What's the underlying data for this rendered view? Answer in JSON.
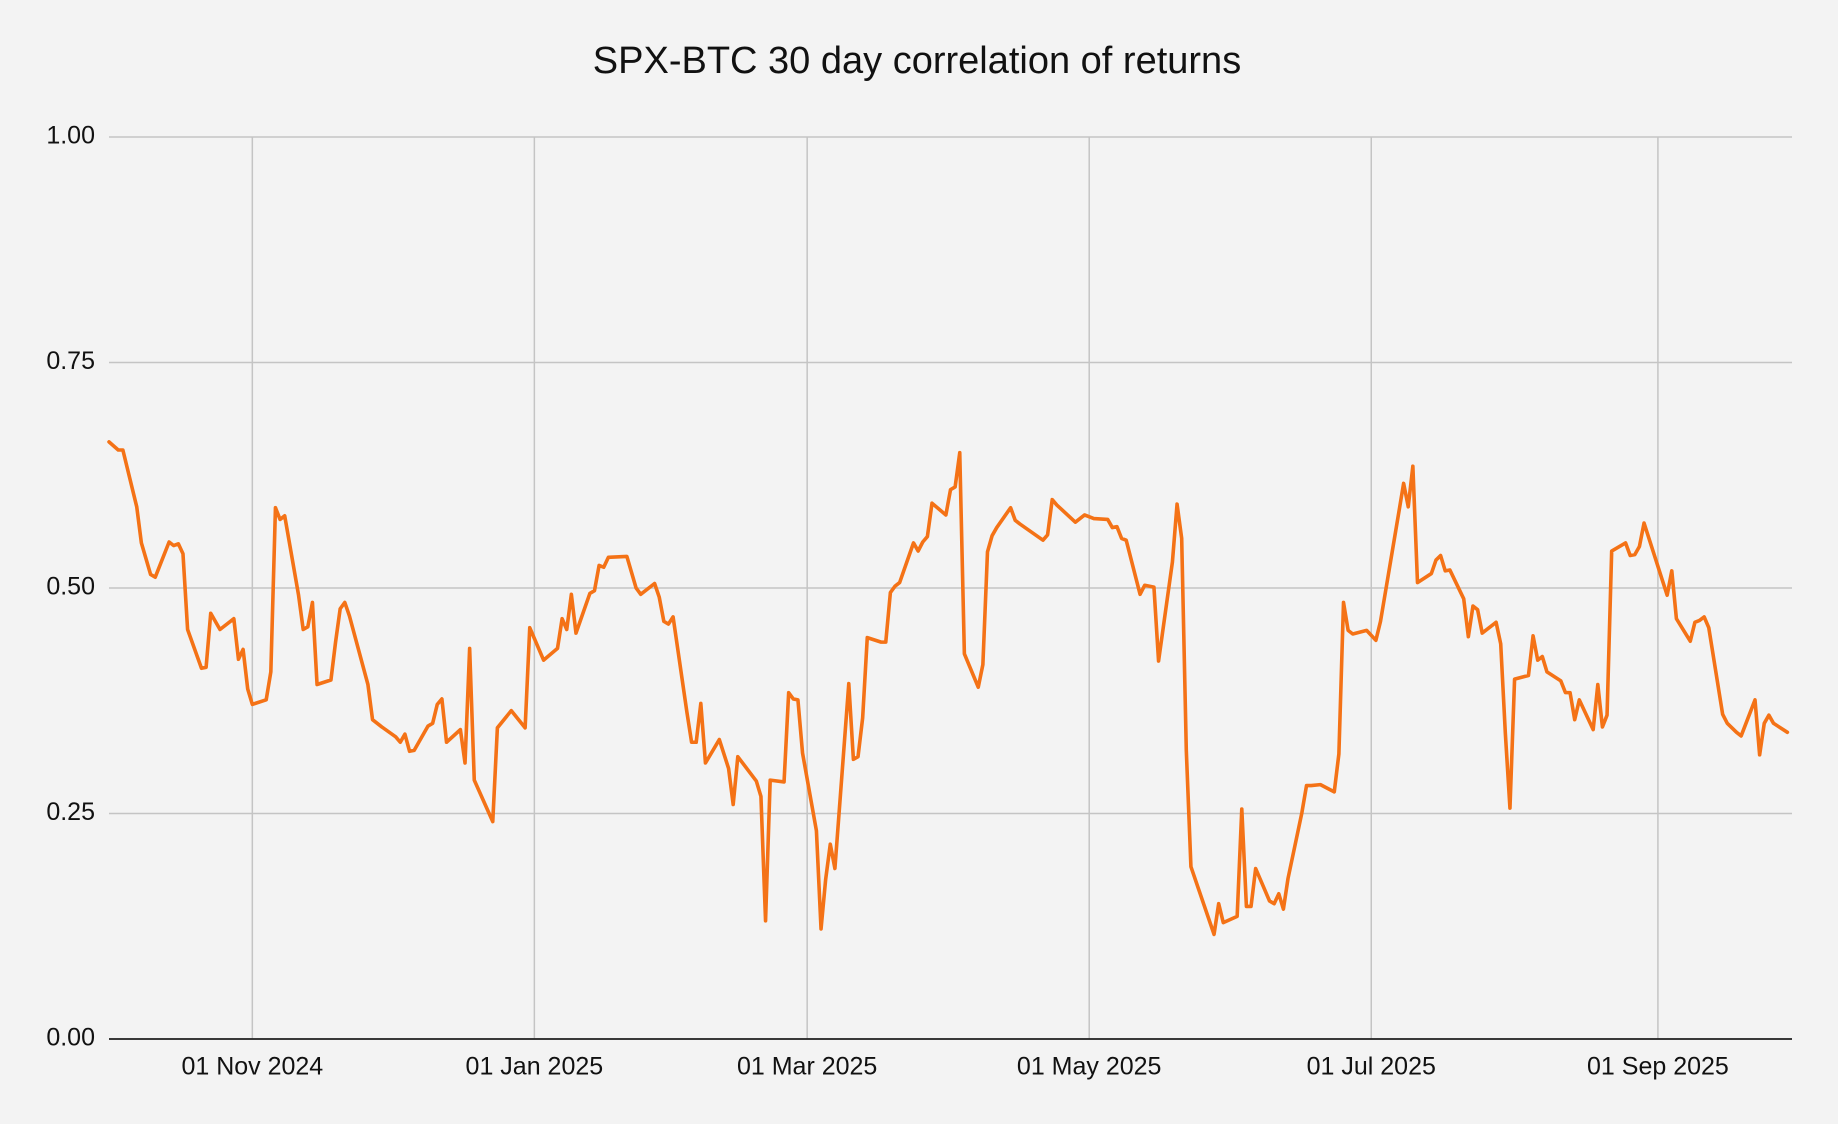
{
  "chart_data": {
    "type": "line",
    "title": "SPX-BTC 30 day correlation of returns",
    "color": "#f47216",
    "grid": true,
    "xlim": [
      "2024-10-01",
      "2025-09-30"
    ],
    "xticks": [
      {
        "value": "2024-11-01",
        "label": "01 Nov 2024"
      },
      {
        "value": "2025-01-01",
        "label": "01 Jan 2025"
      },
      {
        "value": "2025-03-01",
        "label": "01 Mar 2025"
      },
      {
        "value": "2025-05-01",
        "label": "01 May 2025"
      },
      {
        "value": "2025-07-01",
        "label": "01 Jul 2025"
      },
      {
        "value": "2025-09-01",
        "label": "01 Sep 2025"
      }
    ],
    "ylim": [
      0,
      1
    ],
    "yticks": [
      {
        "value": 0,
        "label": "0.00"
      },
      0.25,
      {
        "value": 0.5,
        "label": "0.50"
      },
      0.75,
      {
        "value": 1,
        "label": "1.00"
      }
    ],
    "x": [
      "2024-10-01",
      "2024-10-03",
      "2024-10-04",
      "2024-10-07",
      "2024-10-08",
      "2024-10-10",
      "2024-10-11",
      "2024-10-14",
      "2024-10-15",
      "2024-10-16",
      "2024-10-17",
      "2024-10-18",
      "2024-10-21",
      "2024-10-22",
      "2024-10-23",
      "2024-10-25",
      "2024-10-28",
      "2024-10-29",
      "2024-10-30",
      "2024-10-31",
      "2024-11-01",
      "2024-11-04",
      "2024-11-05",
      "2024-11-06",
      "2024-11-07",
      "2024-11-08",
      "2024-11-11",
      "2024-11-12",
      "2024-11-13",
      "2024-11-14",
      "2024-11-15",
      "2024-11-18",
      "2024-11-19",
      "2024-11-20",
      "2024-11-21",
      "2024-11-22",
      "2024-11-26",
      "2024-11-27",
      "2024-11-29",
      "2024-12-02",
      "2024-12-03",
      "2024-12-04",
      "2024-12-05",
      "2024-12-06",
      "2024-12-09",
      "2024-12-10",
      "2024-12-11",
      "2024-12-12",
      "2024-12-13",
      "2024-12-16",
      "2024-12-17",
      "2024-12-18",
      "2024-12-19",
      "2024-12-23",
      "2024-12-24",
      "2024-12-27",
      "2024-12-30",
      "2024-12-31",
      "2025-01-03",
      "2025-01-06",
      "2025-01-07",
      "2025-01-08",
      "2025-01-09",
      "2025-01-10",
      "2025-01-13",
      "2025-01-14",
      "2025-01-15",
      "2025-01-16",
      "2025-01-17",
      "2025-01-21",
      "2025-01-23",
      "2025-01-24",
      "2025-01-27",
      "2025-01-28",
      "2025-01-29",
      "2025-01-30",
      "2025-01-31",
      "2025-02-03",
      "2025-02-04",
      "2025-02-05",
      "2025-02-06",
      "2025-02-07",
      "2025-02-10",
      "2025-02-12",
      "2025-02-13",
      "2025-02-14",
      "2025-02-18",
      "2025-02-19",
      "2025-02-20",
      "2025-02-21",
      "2025-02-24",
      "2025-02-25",
      "2025-02-26",
      "2025-02-27",
      "2025-02-28",
      "2025-03-03",
      "2025-03-04",
      "2025-03-05",
      "2025-03-06",
      "2025-03-07",
      "2025-03-10",
      "2025-03-11",
      "2025-03-12",
      "2025-03-13",
      "2025-03-14",
      "2025-03-17",
      "2025-03-18",
      "2025-03-19",
      "2025-03-20",
      "2025-03-21",
      "2025-03-24",
      "2025-03-25",
      "2025-03-26",
      "2025-03-27",
      "2025-03-28",
      "2025-03-31",
      "2025-04-01",
      "2025-04-02",
      "2025-04-03",
      "2025-04-04",
      "2025-04-07",
      "2025-04-08",
      "2025-04-09",
      "2025-04-10",
      "2025-04-11",
      "2025-04-14",
      "2025-04-15",
      "2025-04-16",
      "2025-04-21",
      "2025-04-22",
      "2025-04-23",
      "2025-04-24",
      "2025-04-28",
      "2025-04-30",
      "2025-05-02",
      "2025-05-05",
      "2025-05-06",
      "2025-05-07",
      "2025-05-08",
      "2025-05-09",
      "2025-05-12",
      "2025-05-13",
      "2025-05-15",
      "2025-05-16",
      "2025-05-19",
      "2025-05-20",
      "2025-05-21",
      "2025-05-22",
      "2025-05-23",
      "2025-05-28",
      "2025-05-29",
      "2025-05-30",
      "2025-06-02",
      "2025-06-03",
      "2025-06-04",
      "2025-06-05",
      "2025-06-06",
      "2025-06-09",
      "2025-06-10",
      "2025-06-11",
      "2025-06-12",
      "2025-06-13",
      "2025-06-16",
      "2025-06-17",
      "2025-06-18",
      "2025-06-20",
      "2025-06-23",
      "2025-06-24",
      "2025-06-25",
      "2025-06-26",
      "2025-06-27",
      "2025-06-30",
      "2025-07-02",
      "2025-07-03",
      "2025-07-07",
      "2025-07-08",
      "2025-07-09",
      "2025-07-10",
      "2025-07-11",
      "2025-07-14",
      "2025-07-15",
      "2025-07-16",
      "2025-07-17",
      "2025-07-18",
      "2025-07-21",
      "2025-07-22",
      "2025-07-23",
      "2025-07-24",
      "2025-07-25",
      "2025-07-28",
      "2025-07-29",
      "2025-07-30",
      "2025-07-31",
      "2025-08-01",
      "2025-08-04",
      "2025-08-05",
      "2025-08-06",
      "2025-08-07",
      "2025-08-08",
      "2025-08-11",
      "2025-08-12",
      "2025-08-13",
      "2025-08-14",
      "2025-08-15",
      "2025-08-18",
      "2025-08-19",
      "2025-08-20",
      "2025-08-21",
      "2025-08-22",
      "2025-08-25",
      "2025-08-26",
      "2025-08-27",
      "2025-08-28",
      "2025-08-29",
      "2025-09-02",
      "2025-09-03",
      "2025-09-04",
      "2025-09-05",
      "2025-09-08",
      "2025-09-09",
      "2025-09-10",
      "2025-09-11",
      "2025-09-12",
      "2025-09-15",
      "2025-09-16",
      "2025-09-17",
      "2025-09-18",
      "2025-09-19",
      "2025-09-22",
      "2025-09-23",
      "2025-09-24",
      "2025-09-25",
      "2025-09-26",
      "2025-09-29"
    ],
    "values": [
      0.662,
      0.653,
      0.653,
      0.59,
      0.55,
      0.515,
      0.512,
      0.551,
      0.547,
      0.549,
      0.538,
      0.454,
      0.411,
      0.412,
      0.472,
      0.454,
      0.466,
      0.421,
      0.432,
      0.388,
      0.371,
      0.376,
      0.407,
      0.589,
      0.576,
      0.58,
      0.492,
      0.454,
      0.457,
      0.484,
      0.393,
      0.398,
      0.44,
      0.477,
      0.484,
      0.469,
      0.393,
      0.354,
      0.346,
      0.335,
      0.329,
      0.338,
      0.319,
      0.32,
      0.347,
      0.35,
      0.371,
      0.377,
      0.329,
      0.343,
      0.306,
      0.433,
      0.287,
      0.241,
      0.345,
      0.364,
      0.345,
      0.456,
      0.42,
      0.433,
      0.466,
      0.454,
      0.493,
      0.45,
      0.494,
      0.497,
      0.525,
      0.523,
      0.534,
      0.535,
      0.5,
      0.493,
      0.505,
      0.49,
      0.463,
      0.46,
      0.468,
      0.362,
      0.329,
      0.329,
      0.372,
      0.306,
      0.332,
      0.3,
      0.26,
      0.313,
      0.286,
      0.269,
      0.131,
      0.287,
      0.285,
      0.384,
      0.377,
      0.376,
      0.317,
      0.231,
      0.122,
      0.177,
      0.216,
      0.189,
      0.394,
      0.31,
      0.313,
      0.356,
      0.445,
      0.44,
      0.44,
      0.495,
      0.502,
      0.506,
      0.55,
      0.541,
      0.551,
      0.557,
      0.594,
      0.581,
      0.609,
      0.612,
      0.65,
      0.427,
      0.39,
      0.415,
      0.54,
      0.558,
      0.567,
      0.589,
      0.575,
      0.571,
      0.553,
      0.559,
      0.598,
      0.592,
      0.573,
      0.581,
      0.577,
      0.576,
      0.567,
      0.568,
      0.555,
      0.553,
      0.493,
      0.503,
      0.501,
      0.419,
      0.529,
      0.593,
      0.555,
      0.32,
      0.191,
      0.116,
      0.15,
      0.129,
      0.136,
      0.255,
      0.147,
      0.147,
      0.189,
      0.153,
      0.15,
      0.161,
      0.144,
      0.178,
      0.251,
      0.281,
      0.281,
      0.282,
      0.274,
      0.316,
      0.484,
      0.453,
      0.449,
      0.453,
      0.442,
      0.463,
      0.585,
      0.616,
      0.59,
      0.635,
      0.506,
      0.516,
      0.531,
      0.536,
      0.519,
      0.52,
      0.488,
      0.446,
      0.48,
      0.476,
      0.45,
      0.462,
      0.438,
      0.339,
      0.256,
      0.399,
      0.403,
      0.447,
      0.42,
      0.424,
      0.407,
      0.397,
      0.384,
      0.384,
      0.354,
      0.376,
      0.343,
      0.393,
      0.346,
      0.359,
      0.541,
      0.55,
      0.536,
      0.537,
      0.546,
      0.572,
      0.508,
      0.492,
      0.519,
      0.466,
      0.441,
      0.462,
      0.464,
      0.468,
      0.456,
      0.36,
      0.35,
      0.345,
      0.34,
      0.336,
      0.376,
      0.315,
      0.35,
      0.359,
      0.35,
      0.34
    ]
  }
}
